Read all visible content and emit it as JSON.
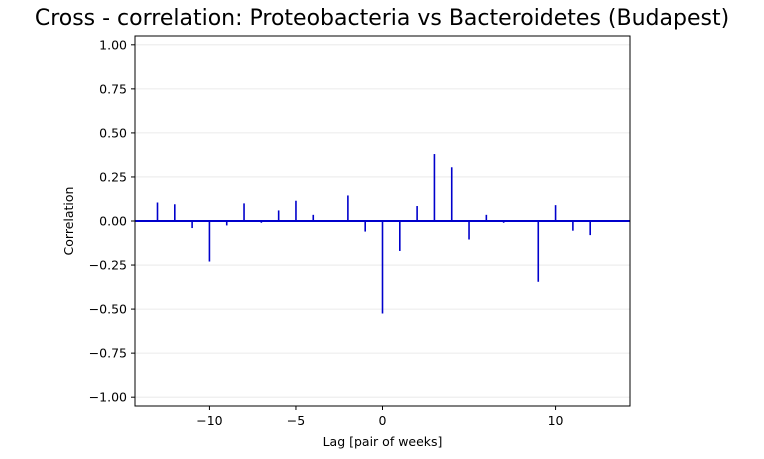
{
  "chart_data": {
    "type": "bar",
    "title": "Cross - correlation: Proteobacteria vs Bacteroidetes (Budapest)",
    "xlabel": "Lag [pair of weeks]",
    "ylabel": "Correlation",
    "xlim": [
      -14.3,
      14.3
    ],
    "ylim": [
      -1.05,
      1.05
    ],
    "xticks": [
      -10,
      -5,
      0,
      10
    ],
    "xtick_labels": [
      "−10",
      "−5",
      "0",
      "10"
    ],
    "yticks": [
      1.0,
      0.75,
      0.5,
      0.25,
      0.0,
      -0.25,
      -0.5,
      -0.75,
      -1.0
    ],
    "ytick_labels": [
      "1.00",
      "0.75",
      "0.50",
      "0.25",
      "0.00",
      "−0.25",
      "−0.50",
      "−0.75",
      "−1.00"
    ],
    "grid": "horizontal",
    "baseline": 0,
    "colors": {
      "stems": "#0000cc",
      "baseline": "#0000cc",
      "grid": "#e6e6e6"
    },
    "series": [
      {
        "x": [
          -13,
          -12,
          -11,
          -10,
          -9,
          -8,
          -7,
          -6,
          -5,
          -4,
          -3,
          -2,
          -1,
          0,
          1,
          2,
          3,
          4,
          5,
          6,
          7,
          8,
          9,
          10,
          11,
          12
        ],
        "values": [
          0.105,
          0.095,
          -0.04,
          -0.23,
          -0.025,
          0.1,
          -0.01,
          0.06,
          0.115,
          0.035,
          0.0,
          0.145,
          -0.06,
          -0.525,
          -0.17,
          0.085,
          0.38,
          0.305,
          -0.105,
          0.035,
          -0.01,
          0.0,
          -0.345,
          0.09,
          -0.055,
          -0.08
        ]
      }
    ]
  }
}
